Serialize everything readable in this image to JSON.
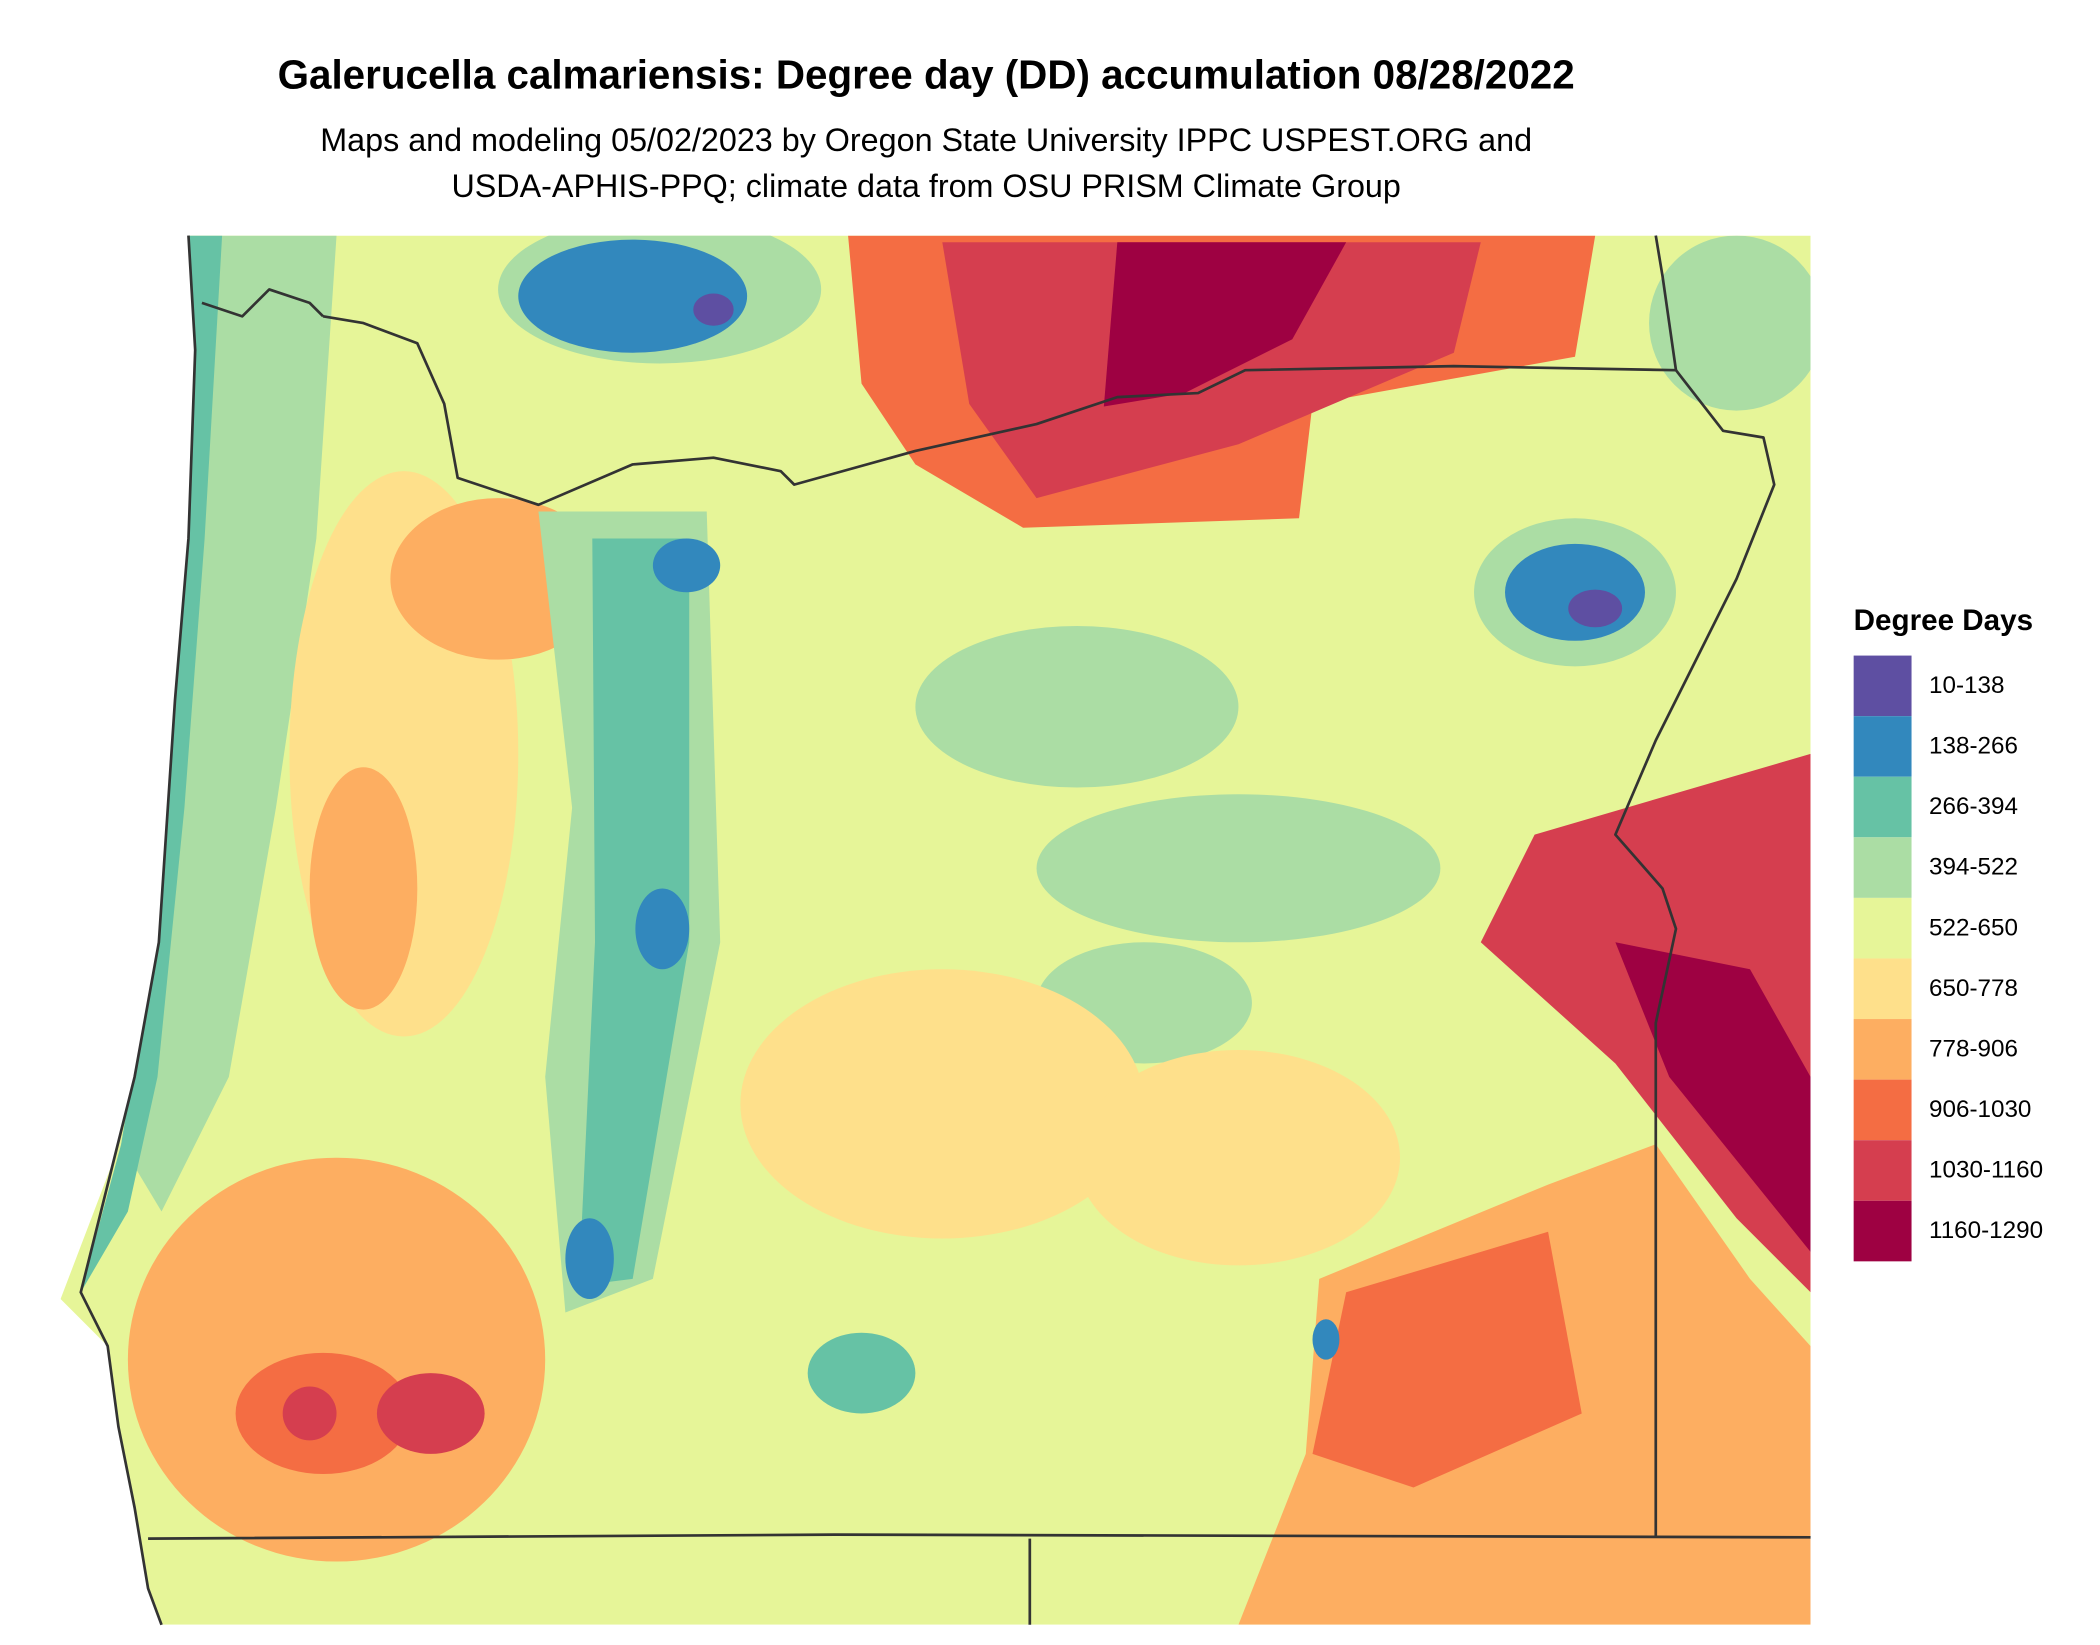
{
  "title": "Galerucella calmariensis: Degree day (DD) accumulation 08/28/2022",
  "subtitle": [
    "Maps and modeling 05/02/2023 by Oregon State University IPPC USPEST.ORG and",
    "USDA-APHIS-PPQ; climate data from OSU PRISM Climate Group"
  ],
  "legend": {
    "title": "Degree Days",
    "items": [
      {
        "label": "10-138",
        "color": "#5e4fa2"
      },
      {
        "label": "138-266",
        "color": "#3288bd"
      },
      {
        "label": "266-394",
        "color": "#66c2a5"
      },
      {
        "label": "394-522",
        "color": "#abdda4"
      },
      {
        "label": "522-650",
        "color": "#e6f598"
      },
      {
        "label": "650-778",
        "color": "#fee08b"
      },
      {
        "label": "778-906",
        "color": "#fdae61"
      },
      {
        "label": "906-1030",
        "color": "#f46d43"
      },
      {
        "label": "1030-1160",
        "color": "#d53e4f"
      },
      {
        "label": "1160-1290",
        "color": "#9e0142"
      }
    ]
  }
}
